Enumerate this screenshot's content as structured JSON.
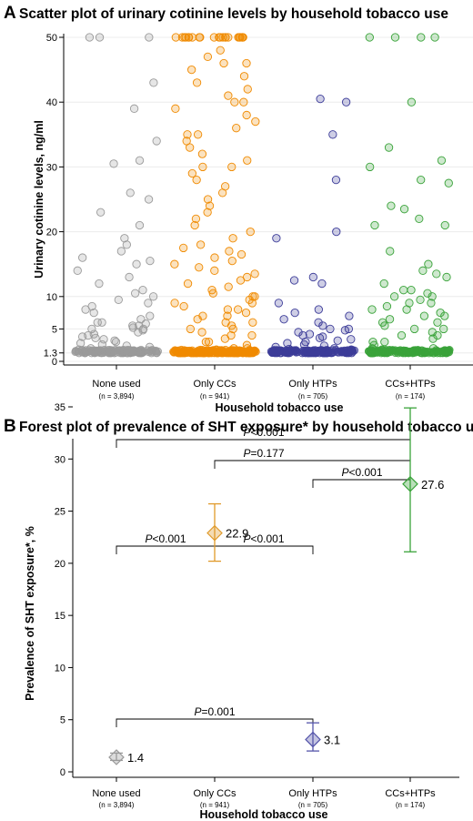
{
  "chart_data": [
    {
      "panel": "A",
      "type": "scatter",
      "title": "Scatter plot of urinary cotinine levels by household tobacco use",
      "xlabel": "Household tobacco use",
      "ylabel": "Urinary cotinine levels, ng/ml",
      "yticks": [
        "0",
        "1.3",
        "5",
        "10",
        "20",
        "30",
        "40",
        "50"
      ],
      "ytick_values": [
        0,
        1.3,
        5,
        10,
        20,
        30,
        40,
        50
      ],
      "ylim": [
        0,
        50
      ],
      "grid": true,
      "categories": [
        "None used",
        "Only CCs",
        "Only HTPs",
        "CCs+HTPs"
      ],
      "n_labels": [
        "(n = 3,894)",
        "(n = 941)",
        "(n = 705)",
        "(n = 174)"
      ],
      "colors": [
        "#9a9a9a",
        "#f08a00",
        "#3d3d99",
        "#3aa33a"
      ],
      "series": [
        {
          "category": "None used",
          "y": [
            50,
            50,
            50,
            43,
            39,
            34,
            31,
            30.5,
            26,
            25,
            23,
            21,
            19,
            18,
            17,
            16,
            15.5,
            15,
            14,
            13,
            12,
            11,
            10.5,
            10,
            9.5,
            9,
            8.5,
            8,
            7.5,
            7,
            6.5,
            6,
            6,
            5.8,
            5.5,
            5.5,
            5.2,
            5,
            5,
            4.8,
            4.5,
            4.2,
            4,
            3.8,
            3.6,
            3.4,
            3.2,
            3,
            2.8,
            2.6,
            2.4,
            2.2,
            2,
            1.8,
            1.6,
            1.5,
            1.4,
            1.3,
            1.3,
            1.3,
            1.3,
            1.3,
            1.3,
            1.3,
            1.3,
            1.3,
            1.3,
            1.3,
            1.3,
            1.3,
            1.3,
            1.3,
            1.3,
            1.3,
            1.3,
            1.3,
            1.3,
            1.3,
            1.3,
            1.3
          ]
        },
        {
          "category": "Only CCs",
          "y": [
            50,
            50,
            50,
            50,
            50,
            50,
            50,
            50,
            50,
            50,
            50,
            50,
            50,
            50,
            50,
            50,
            50,
            50,
            50,
            50,
            50,
            50,
            48,
            47,
            46,
            46,
            45,
            44,
            43,
            42,
            41,
            40,
            40,
            39,
            38,
            37,
            36,
            35,
            35,
            34,
            33,
            32,
            31,
            30,
            30,
            29,
            28,
            27,
            26,
            25,
            24,
            23,
            22,
            21,
            20,
            19,
            18,
            17.5,
            17,
            16.5,
            16,
            15.5,
            15,
            14.5,
            14,
            13.5,
            13,
            12.5,
            12,
            11.5,
            11,
            10.5,
            10,
            10,
            9.5,
            9,
            9,
            8.5,
            8,
            8,
            7.5,
            7,
            7,
            6.5,
            6,
            6,
            5.5,
            5,
            5,
            4.5,
            4,
            4,
            3.5,
            3,
            3,
            2.5,
            2,
            2,
            1.8,
            1.6,
            1.5,
            1.4,
            1.3,
            1.3,
            1.3,
            1.3,
            1.3,
            1.3,
            1.3,
            1.3,
            1.3,
            1.3,
            1.3,
            1.3,
            1.3,
            1.3,
            1.3,
            1.3,
            1.3,
            1.3,
            1.3,
            1.3,
            1.3,
            1.3,
            1.3,
            1.3,
            1.3,
            1.3,
            1.3,
            1.3,
            1.3,
            1.3,
            1.3,
            1.3,
            1.3,
            1.3,
            1.3,
            1.3,
            1.3,
            1.3,
            1.3,
            1.3,
            1.3,
            1.3,
            1.3,
            1.3,
            1.3,
            1.3,
            1.3,
            1.3,
            1.3,
            1.3,
            1.3,
            1.3,
            1.3,
            1.3,
            1.3,
            1.3,
            1.3,
            1.3,
            1.3,
            1.3
          ]
        },
        {
          "category": "Only HTPs",
          "y": [
            40.5,
            40,
            35,
            28,
            20,
            19,
            13,
            12.5,
            12,
            9,
            8,
            7.5,
            7,
            6.5,
            6,
            5.5,
            5,
            5,
            4.8,
            4.5,
            4.2,
            4,
            3.8,
            3.6,
            3.4,
            3.2,
            3,
            2.8,
            2.6,
            2.4,
            2.2,
            2,
            1.9,
            1.8,
            1.7,
            1.6,
            1.5,
            1.4,
            1.3,
            1.3,
            1.3,
            1.3,
            1.3,
            1.3,
            1.3,
            1.3,
            1.3,
            1.3,
            1.3,
            1.3,
            1.3,
            1.3,
            1.3,
            1.3,
            1.3,
            1.3,
            1.3,
            1.3,
            1.3,
            1.3,
            1.3,
            1.3,
            1.3,
            1.3,
            1.3,
            1.3
          ]
        },
        {
          "category": "CCs+HTPs",
          "y": [
            50,
            50,
            50,
            50,
            40,
            33,
            31,
            30,
            28,
            27.5,
            24,
            23.5,
            22,
            21,
            21,
            17,
            15,
            14,
            13.5,
            13,
            12,
            11,
            11,
            10.5,
            10,
            10,
            9.5,
            9,
            9,
            8.5,
            8,
            8,
            7.5,
            7,
            7,
            6.5,
            6,
            6,
            5.5,
            5,
            5,
            4.5,
            4,
            4,
            3.5,
            3,
            3,
            2.5,
            2,
            2,
            1.8,
            1.6,
            1.5,
            1.4,
            1.3,
            1.3,
            1.3,
            1.3,
            1.3,
            1.3,
            1.3,
            1.3,
            1.3,
            1.3,
            1.3,
            1.3,
            1.3,
            1.3,
            1.3,
            1.3,
            1.3,
            1.3,
            1.3,
            1.3,
            1.3,
            1.3,
            1.3,
            1.3,
            1.3,
            1.3
          ]
        }
      ]
    },
    {
      "panel": "B",
      "type": "scatter",
      "title": "Forest plot of prevalence of SHT exposure* by household tobacco use",
      "xlabel": "Household tobacco use",
      "ylabel": "Prevalence of SHT exposure*, %",
      "yticks": [
        "0",
        "5",
        "10",
        "15",
        "20",
        "25",
        "30",
        "35"
      ],
      "ytick_values": [
        0,
        5,
        10,
        15,
        20,
        25,
        30,
        35
      ],
      "ylim": [
        0,
        35
      ],
      "categories": [
        "None used",
        "Only CCs",
        "Only HTPs",
        "CCs+HTPs"
      ],
      "n_labels": [
        "(n = 3,894)",
        "(n = 941)",
        "(n = 705)",
        "(n = 174)"
      ],
      "colors": [
        "#9a9a9a",
        "#e09a2a",
        "#5555aa",
        "#3aa33a"
      ],
      "estimates": [
        1.4,
        22.9,
        3.1,
        27.6
      ],
      "value_labels": [
        "1.4",
        "22.9",
        "3.1",
        "27.6"
      ],
      "ci_low": [
        1.1,
        20.2,
        2.0,
        21.1
      ],
      "ci_high": [
        1.8,
        25.7,
        4.7,
        34.9
      ],
      "comparisons": [
        {
          "from": "None used",
          "to": "CCs+HTPs",
          "label": "<0.001"
        },
        {
          "from": "Only CCs",
          "to": "CCs+HTPs",
          "label": "=0.177"
        },
        {
          "from": "Only HTPs",
          "to": "CCs+HTPs",
          "label": "<0.001"
        },
        {
          "from": "None used",
          "to": "Only CCs",
          "label": "<0.001"
        },
        {
          "from": "Only CCs",
          "to": "Only HTPs",
          "label": "<0.001"
        },
        {
          "from": "None used",
          "to": "Only HTPs",
          "label": "=0.001"
        }
      ],
      "p_prefix": "P"
    }
  ],
  "panels": {
    "a": {
      "letter": "A",
      "title": "Scatter plot of urinary cotinine levels by household tobacco use"
    },
    "b": {
      "letter": "B",
      "title": "Forest plot of prevalence of SHT exposure* by household tobacco use"
    }
  }
}
